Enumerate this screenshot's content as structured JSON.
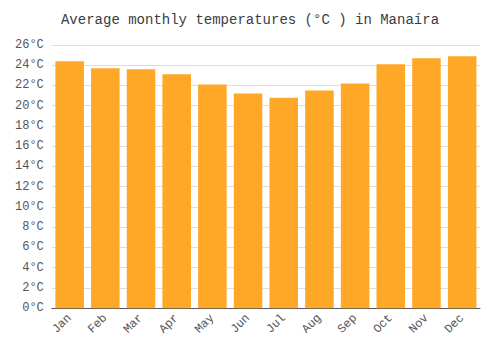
{
  "chart_data": {
    "type": "bar",
    "title": "Average monthly temperatures (°C ) in Manaíra",
    "categories": [
      "Jan",
      "Feb",
      "Mar",
      "Apr",
      "May",
      "Jun",
      "Jul",
      "Aug",
      "Sep",
      "Oct",
      "Nov",
      "Dec"
    ],
    "values": [
      24.4,
      23.7,
      23.6,
      23.1,
      22.1,
      21.2,
      20.8,
      21.5,
      22.2,
      24.1,
      24.7,
      24.9
    ],
    "color": "#FFA726",
    "ylim": [
      0,
      26
    ],
    "yticks": [
      {
        "value": 0,
        "label": "0°C"
      },
      {
        "value": 2,
        "label": "2°C"
      },
      {
        "value": 4,
        "label": "4°C"
      },
      {
        "value": 6,
        "label": "6°C"
      },
      {
        "value": 8,
        "label": "8°C"
      },
      {
        "value": 10,
        "label": "10°C"
      },
      {
        "value": 12,
        "label": "12°C"
      },
      {
        "value": 14,
        "label": "14°C"
      },
      {
        "value": 16,
        "label": "16°C"
      },
      {
        "value": 18,
        "label": "18°C"
      },
      {
        "value": 20,
        "label": "20°C"
      },
      {
        "value": 22,
        "label": "22°C"
      },
      {
        "value": 24,
        "label": "24°C"
      },
      {
        "value": 26,
        "label": "26°C"
      }
    ],
    "grid": true
  }
}
